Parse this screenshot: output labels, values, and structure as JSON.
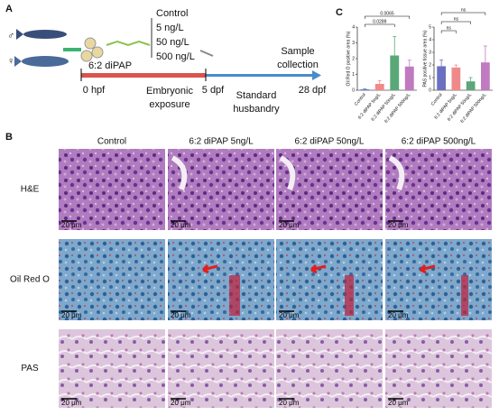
{
  "panel_a": {
    "label": "A",
    "male": "♂",
    "female": "♀",
    "concentrations": [
      "Control",
      "5 ng/L",
      "50 ng/L",
      "500 ng/L"
    ],
    "compound": "6:2 diPAP",
    "start": "0 hpf",
    "exposure": [
      "Embryonic",
      "exposure"
    ],
    "mid": "5 dpf",
    "husbandry": [
      "Standard",
      "husbandry"
    ],
    "collection": [
      "Sample",
      "collection"
    ],
    "end": "28 dpf"
  },
  "panel_b": {
    "label": "B",
    "columns": [
      "Control",
      "6:2 diPAP 5ng/L",
      "6:2 diPAP 50ng/L",
      "6:2 diPAP 500ng/L"
    ],
    "rows": [
      "H&E",
      "Oil Red O",
      "PAS"
    ],
    "scale_bars": [
      "20 μm",
      "20 μm",
      "20 μm",
      "20 μm",
      "20 μm",
      "20 μm",
      "20 μm",
      "20 μm",
      "20 μm",
      "20 μm",
      "20 μm",
      "20 μm"
    ]
  },
  "panel_c": {
    "label": "C"
  },
  "chart_data": [
    {
      "type": "bar",
      "y_label": "Oil Red O positive area (%)",
      "categories": [
        "Control",
        "6:2 diPAP 5ng/L",
        "6:2 diPAP 50ng/L",
        "6:2 diPAP 500ng/L"
      ],
      "values": [
        0.05,
        0.4,
        2.2,
        1.5
      ],
      "errors": [
        0.03,
        0.2,
        1.2,
        0.4
      ],
      "colors": [
        "#5b6fb5",
        "#f08a8a",
        "#5aa878",
        "#c07ac0"
      ],
      "ylim": [
        0,
        4
      ],
      "yticks": [
        0,
        1,
        2,
        3,
        4
      ],
      "annotations": [
        "0.0065",
        "0.0289"
      ]
    },
    {
      "type": "bar",
      "y_label": "PAS positive tissue area (%)",
      "categories": [
        "Control",
        "6:2 diPAP 5ng/L",
        "6:2 diPAP 50ng/L",
        "6:2 diPAP 500ng/L"
      ],
      "values": [
        1.9,
        1.8,
        0.7,
        2.2
      ],
      "errors": [
        0.5,
        0.2,
        0.3,
        1.3
      ],
      "colors": [
        "#6a6fc0",
        "#f08a8a",
        "#5aa878",
        "#c07ac0"
      ],
      "ylim": [
        0,
        5
      ],
      "yticks": [
        0,
        1,
        2,
        3,
        4,
        5
      ],
      "annotations": [
        "ns",
        "ns",
        "ns"
      ]
    }
  ]
}
